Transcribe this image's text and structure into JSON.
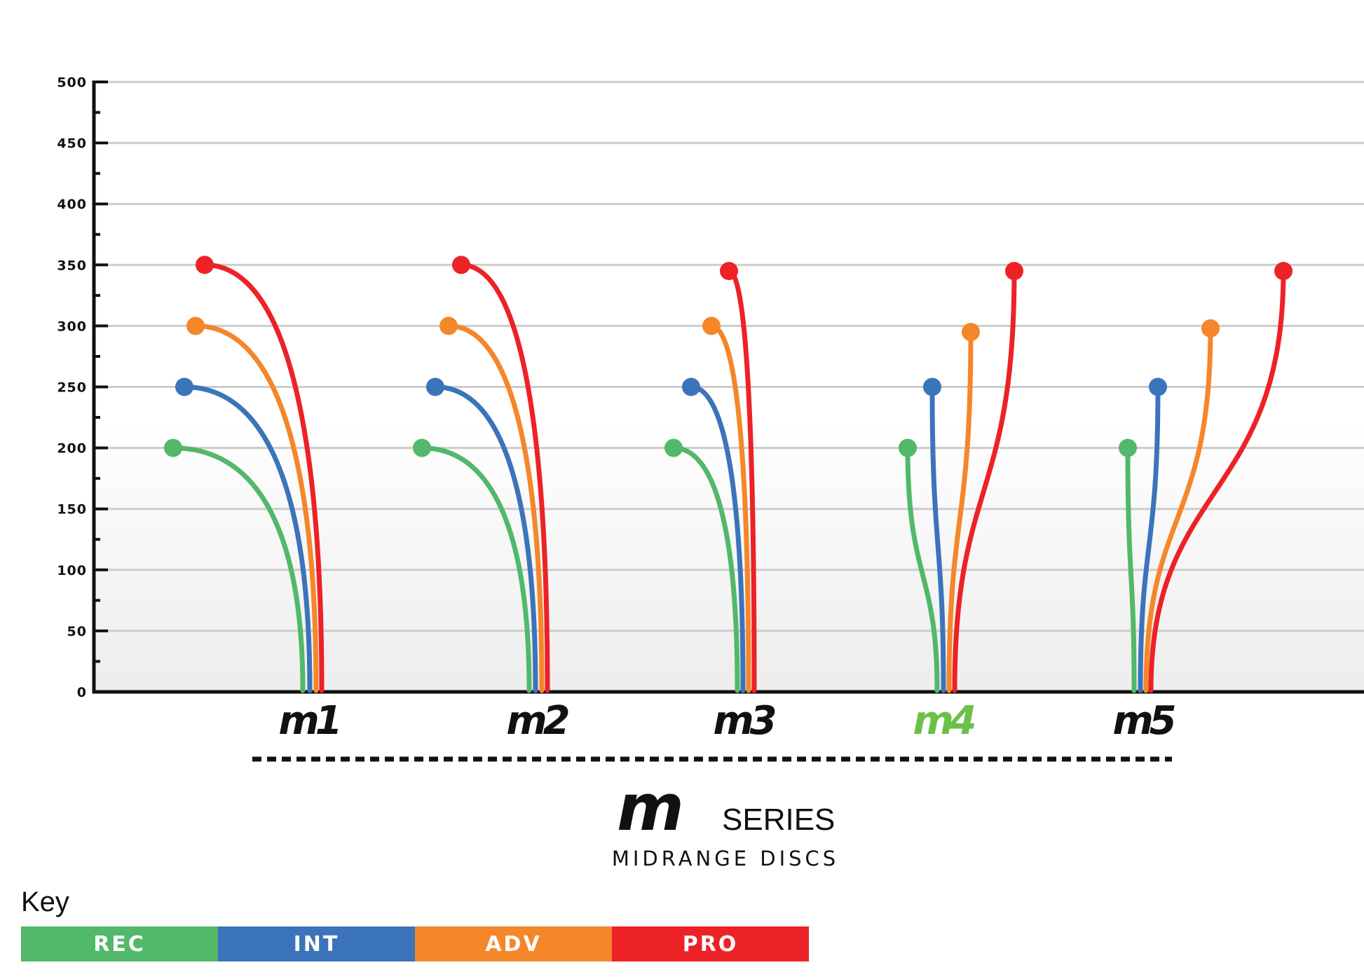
{
  "chart_data": {
    "type": "line",
    "yticks": [
      "0",
      "50",
      "100",
      "150",
      "200",
      "250",
      "300",
      "350",
      "400",
      "450",
      "500"
    ],
    "ylim": [
      0,
      500
    ],
    "grid": true,
    "discs": [
      {
        "label": "m1",
        "color": "#111111",
        "series": [
          {
            "level": "REC",
            "distance": 200
          },
          {
            "level": "INT",
            "distance": 250
          },
          {
            "level": "ADV",
            "distance": 300
          },
          {
            "level": "PRO",
            "distance": 350
          }
        ]
      },
      {
        "label": "m2",
        "color": "#111111",
        "series": [
          {
            "level": "REC",
            "distance": 200
          },
          {
            "level": "INT",
            "distance": 250
          },
          {
            "level": "ADV",
            "distance": 300
          },
          {
            "level": "PRO",
            "distance": 350
          }
        ]
      },
      {
        "label": "m3",
        "color": "#111111",
        "series": [
          {
            "level": "REC",
            "distance": 200
          },
          {
            "level": "INT",
            "distance": 250
          },
          {
            "level": "ADV",
            "distance": 300
          },
          {
            "level": "PRO",
            "distance": 345
          }
        ]
      },
      {
        "label": "m4",
        "color": "#6cc04a",
        "series": [
          {
            "level": "REC",
            "distance": 200
          },
          {
            "level": "INT",
            "distance": 250
          },
          {
            "level": "ADV",
            "distance": 295
          },
          {
            "level": "PRO",
            "distance": 345
          }
        ]
      },
      {
        "label": "m5",
        "color": "#111111",
        "series": [
          {
            "level": "REC",
            "distance": 200
          },
          {
            "level": "INT",
            "distance": 250
          },
          {
            "level": "ADV",
            "distance": 298
          },
          {
            "level": "PRO",
            "distance": 345
          }
        ]
      }
    ]
  },
  "series_title": {
    "logo": "m",
    "word": "SERIES",
    "subtitle": "MIDRANGE DISCS"
  },
  "key": {
    "title": "Key",
    "items": [
      {
        "label": "REC",
        "color": "#52b86a"
      },
      {
        "label": "INT",
        "color": "#3b74ba"
      },
      {
        "label": "ADV",
        "color": "#f5862a"
      },
      {
        "label": "PRO",
        "color": "#ec2227"
      }
    ]
  }
}
